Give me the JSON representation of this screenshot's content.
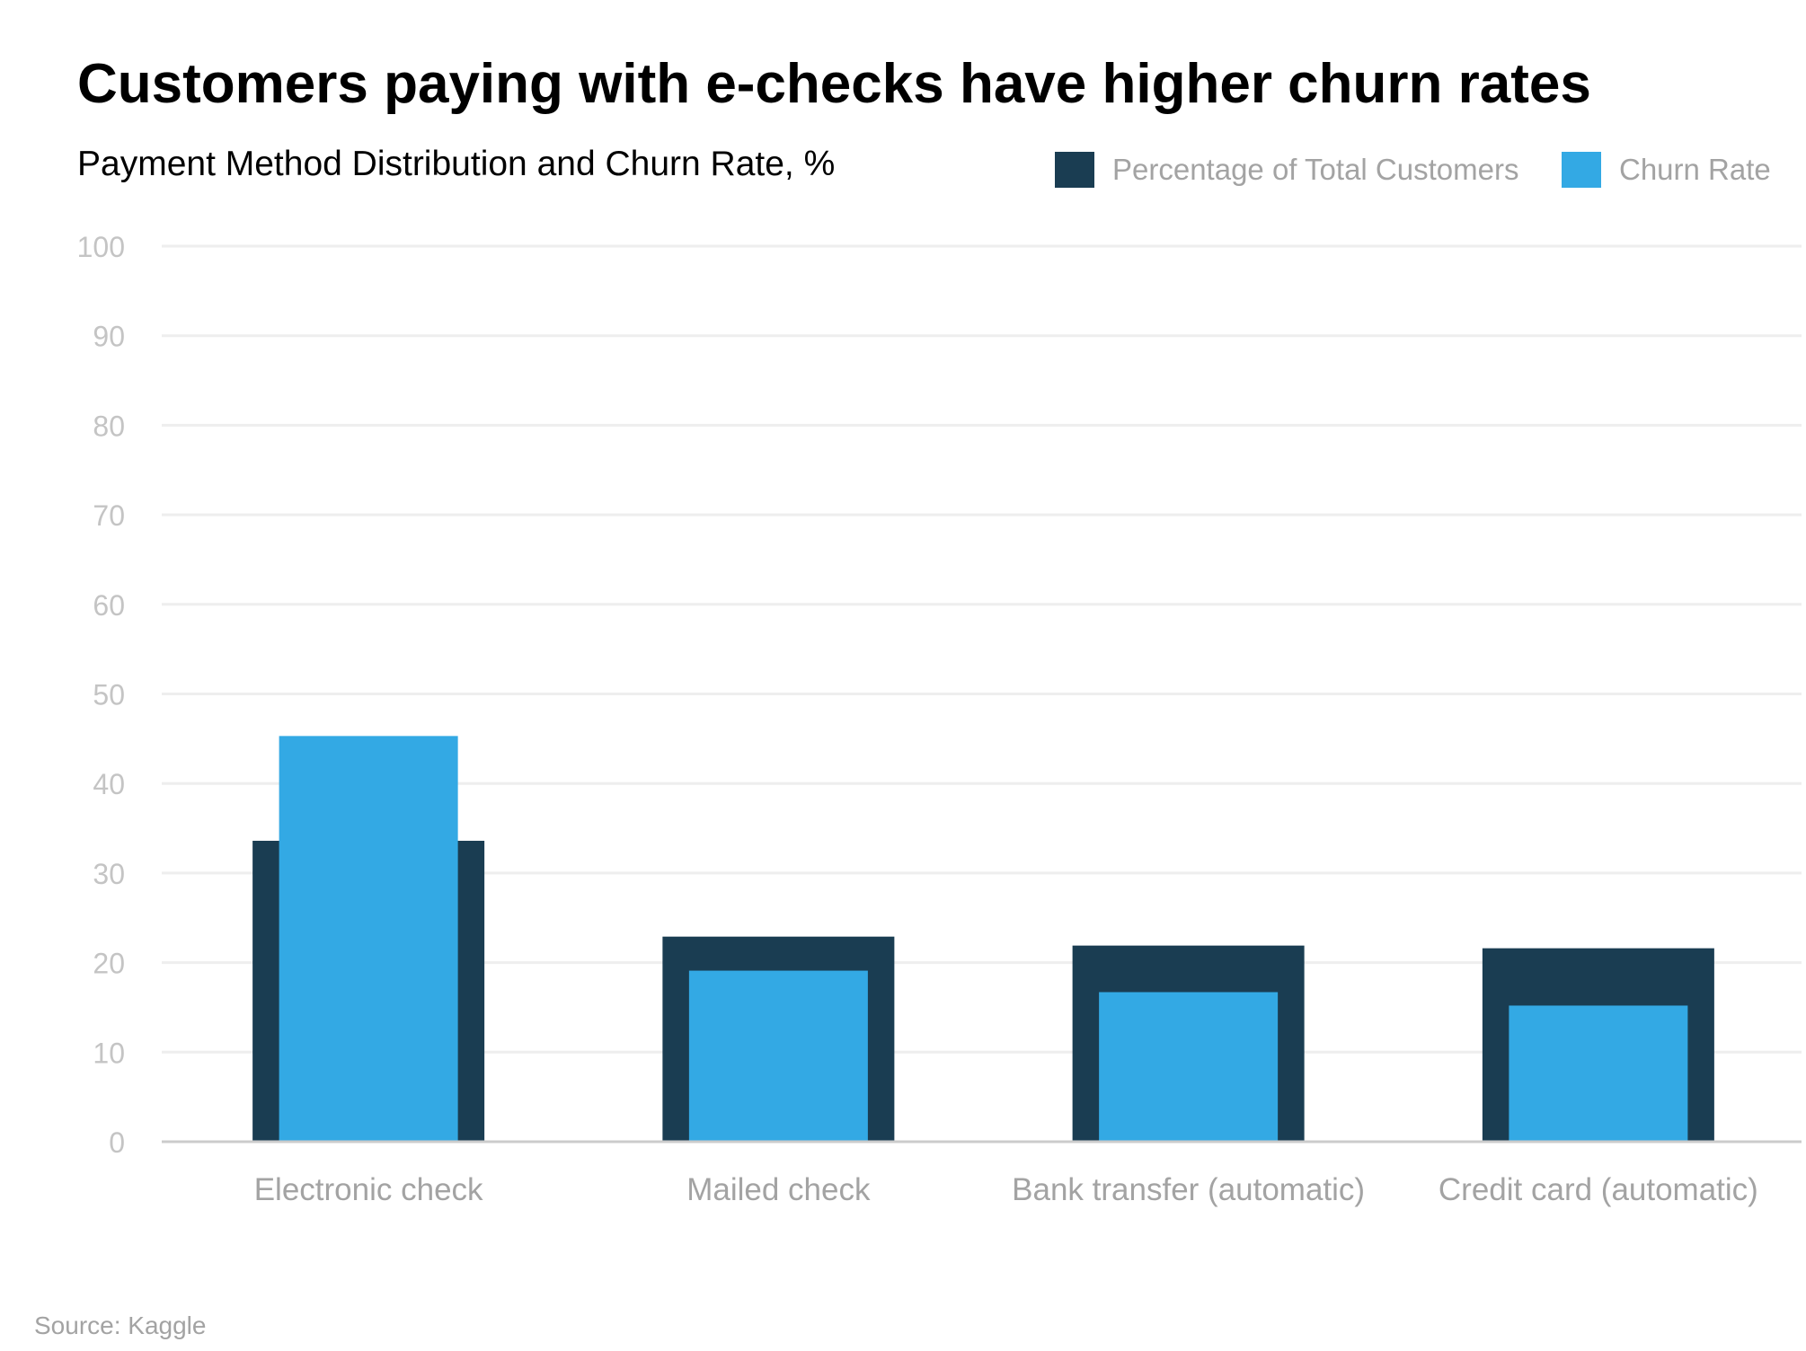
{
  "chart_data": {
    "type": "bar",
    "title": "Customers paying with e-checks have higher churn rates",
    "subtitle": "Payment Method Distribution and Churn Rate, %",
    "categories": [
      "Electronic check",
      "Mailed check",
      "Bank transfer (automatic)",
      "Credit card (automatic)"
    ],
    "series": [
      {
        "name": "Percentage of Total Customers",
        "values": [
          33.6,
          22.9,
          21.9,
          21.6
        ],
        "color": "#1a3d52"
      },
      {
        "name": "Churn Rate",
        "values": [
          45.3,
          19.1,
          16.7,
          15.2
        ],
        "color": "#33a9e4"
      }
    ],
    "ylim": [
      0,
      100
    ],
    "yticks": [
      0,
      10,
      20,
      30,
      40,
      50,
      60,
      70,
      80,
      90,
      100
    ],
    "grid": true,
    "legend_position": "top-right",
    "source": "Source: Kaggle"
  }
}
